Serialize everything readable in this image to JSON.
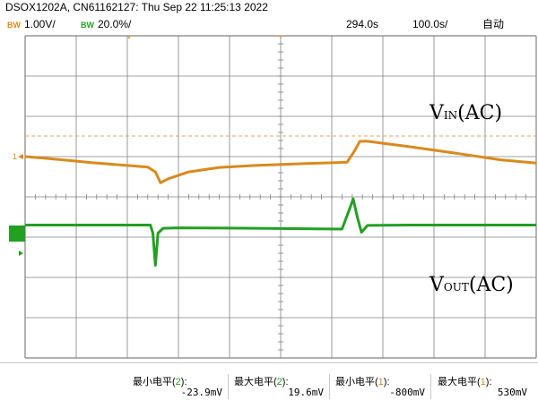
{
  "header": {
    "title": "DSOX1202A, CN61162127: Thu Sep 22 11:25:13 2022",
    "ch1": {
      "bw": "BW",
      "scale": "1.00V/"
    },
    "ch2": {
      "bw": "BW",
      "scale": "20.0%/"
    },
    "timebase_delay": "294.0s",
    "time_scale": "100.0s/",
    "trigger_mode": "自动"
  },
  "scope": {
    "ground_marker_1": "1",
    "ch1_color": "#d98a1c",
    "ch2_color": "#22a022",
    "trigger_color": "#e8a060",
    "grid_color": "#808080"
  },
  "labels": {
    "vin": {
      "main": "V",
      "sub": "IN",
      "suffix": "(AC)"
    },
    "vout": {
      "main": "V",
      "sub": "OUT",
      "suffix": "(AC)"
    }
  },
  "chart_data": {
    "type": "line",
    "x_divisions": 10,
    "y_divisions": 8,
    "series": [
      {
        "channel": 1,
        "x": [
          0,
          0.3,
          0.8,
          1.3,
          2.0,
          2.4,
          2.55,
          2.65,
          2.8,
          3.2,
          3.8,
          4.5,
          5.5,
          6.3,
          6.45,
          6.55,
          6.7,
          7.5,
          8.5,
          9.3,
          10
        ],
        "y": [
          5.0,
          4.97,
          4.91,
          4.85,
          4.78,
          4.74,
          4.62,
          4.35,
          4.45,
          4.62,
          4.73,
          4.78,
          4.83,
          4.86,
          5.15,
          5.38,
          5.38,
          5.25,
          5.07,
          4.92,
          4.84
        ]
      },
      {
        "channel": 2,
        "x": [
          0,
          1.5,
          2.45,
          2.5,
          2.55,
          2.6,
          2.7,
          3.0,
          4.5,
          6.2,
          6.35,
          6.42,
          6.5,
          6.58,
          6.7,
          7.5,
          10
        ],
        "y": [
          3.3,
          3.3,
          3.3,
          3.1,
          2.3,
          3.1,
          3.22,
          3.23,
          3.22,
          3.2,
          3.7,
          3.95,
          3.5,
          3.12,
          3.29,
          3.3,
          3.3
        ]
      }
    ]
  },
  "measurements": [
    {
      "label": "最小电平",
      "channel": "2",
      "value": "-23.9mV"
    },
    {
      "label": "最大电平",
      "channel": "2",
      "value": "19.6mV"
    },
    {
      "label": "最小电平",
      "channel": "1",
      "value": "-800mV"
    },
    {
      "label": "最大电平",
      "channel": "1",
      "value": "530mV"
    }
  ]
}
